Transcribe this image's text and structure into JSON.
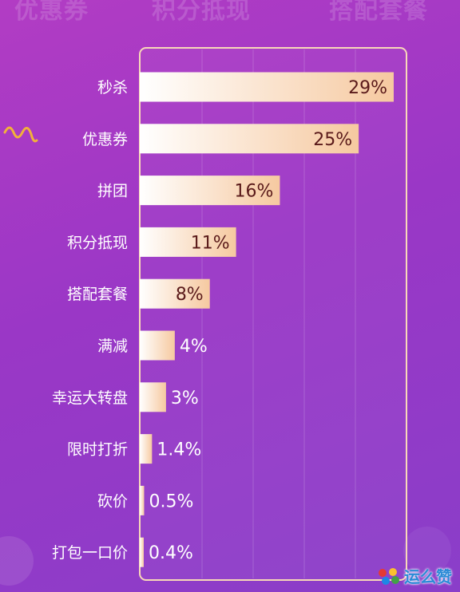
{
  "background_words": [
    "优惠券",
    "积分抵现",
    "搭配套餐"
  ],
  "brand": {
    "text": "运么赞",
    "color": "#2b8ad6"
  },
  "colors": {
    "bar_start": "#ffffff",
    "bar_end": "#f6c9a0",
    "frame": "#f8d8b8",
    "value_dark": "#5a1a1a",
    "value_light": "#ffffff",
    "squiggle": "#f2b13a"
  },
  "chart_data": {
    "type": "bar",
    "orientation": "horizontal",
    "categories": [
      "秒杀",
      "优惠券",
      "拼团",
      "积分抵现",
      "搭配套餐",
      "满减",
      "幸运大转盘",
      "限时打折",
      "砍价",
      "打包一口价"
    ],
    "values": [
      29,
      25,
      16,
      11,
      8,
      4,
      3,
      1.4,
      0.5,
      0.4
    ],
    "value_labels": [
      "29%",
      "25%",
      "16%",
      "11%",
      "8%",
      "4%",
      "3%",
      "1.4%",
      "0.5%",
      "0.4%"
    ],
    "xlim": [
      0,
      29
    ],
    "gridlines": "vertical",
    "title": "",
    "xlabel": "",
    "ylabel": ""
  }
}
